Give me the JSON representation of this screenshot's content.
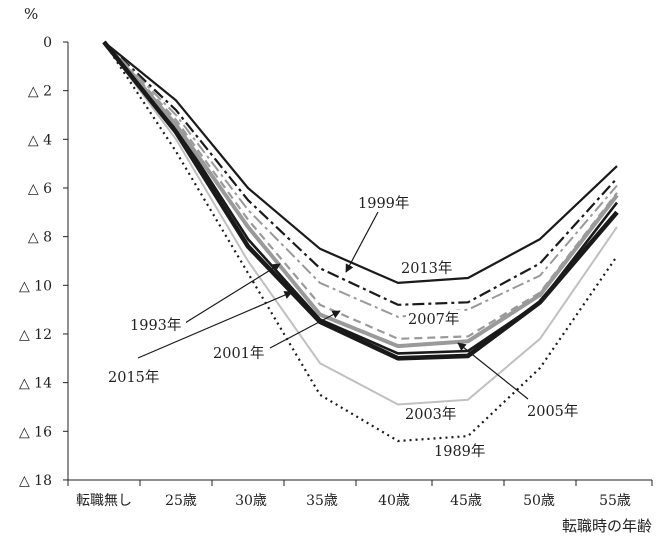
{
  "chart_data": {
    "type": "line",
    "y_unit": "%",
    "xlabel": "転職時の年齢",
    "categories": [
      "転職無し",
      "25歳",
      "30歳",
      "35歳",
      "40歳",
      "45歳",
      "50歳",
      "55歳"
    ],
    "y_ticks": [
      "0",
      "△ 2",
      "△ 4",
      "△ 6",
      "△ 8",
      "△ 10",
      "△ 12",
      "△ 14",
      "△ 16",
      "△ 18"
    ],
    "ylim": [
      0,
      -18
    ],
    "grid": false,
    "series": [
      {
        "name": "1989年",
        "style": "dotted-black",
        "values": [
          0,
          -4.5,
          -9.5,
          -14.5,
          -16.4,
          -16.2,
          -13.4,
          -8.8
        ]
      },
      {
        "name": "1993年",
        "style": "solid-black",
        "values": [
          0,
          -3.5,
          -8.1,
          -11.4,
          -12.8,
          -12.7,
          -10.7,
          -6.6
        ]
      },
      {
        "name": "1999年",
        "style": "dashdot-black",
        "values": [
          0,
          -2.8,
          -6.5,
          -9.3,
          -10.8,
          -10.7,
          -9.1,
          -5.6
        ]
      },
      {
        "name": "2001年",
        "style": "dashed-gray",
        "values": [
          0,
          -3.2,
          -7.3,
          -10.8,
          -12.2,
          -12.1,
          -10.3,
          -6.2
        ]
      },
      {
        "name": "2003年",
        "style": "solid-lightgray",
        "values": [
          0,
          -4.0,
          -9.0,
          -13.2,
          -14.9,
          -14.7,
          -12.2,
          -7.6
        ]
      },
      {
        "name": "2005年",
        "style": "solid-thick-gray",
        "values": [
          0,
          -3.4,
          -7.6,
          -11.2,
          -12.5,
          -12.3,
          -10.4,
          -6.3
        ]
      },
      {
        "name": "2007年",
        "style": "dashdot-gray",
        "values": [
          0,
          -3.0,
          -6.9,
          -9.9,
          -11.3,
          -11.0,
          -9.6,
          -5.9
        ]
      },
      {
        "name": "2013年",
        "style": "solid-black-thin",
        "values": [
          0,
          -2.4,
          -6.0,
          -8.5,
          -9.9,
          -9.7,
          -8.1,
          -5.1
        ]
      },
      {
        "name": "2015年",
        "style": "solid-black-thick",
        "values": [
          0,
          -3.7,
          -8.4,
          -11.5,
          -13.0,
          -12.9,
          -10.7,
          -7.0
        ]
      }
    ]
  },
  "colors": {
    "black": "#1a1a1a",
    "gray": "#9a9a9a",
    "light_gray": "#c0c0c0",
    "axis": "#222222"
  }
}
